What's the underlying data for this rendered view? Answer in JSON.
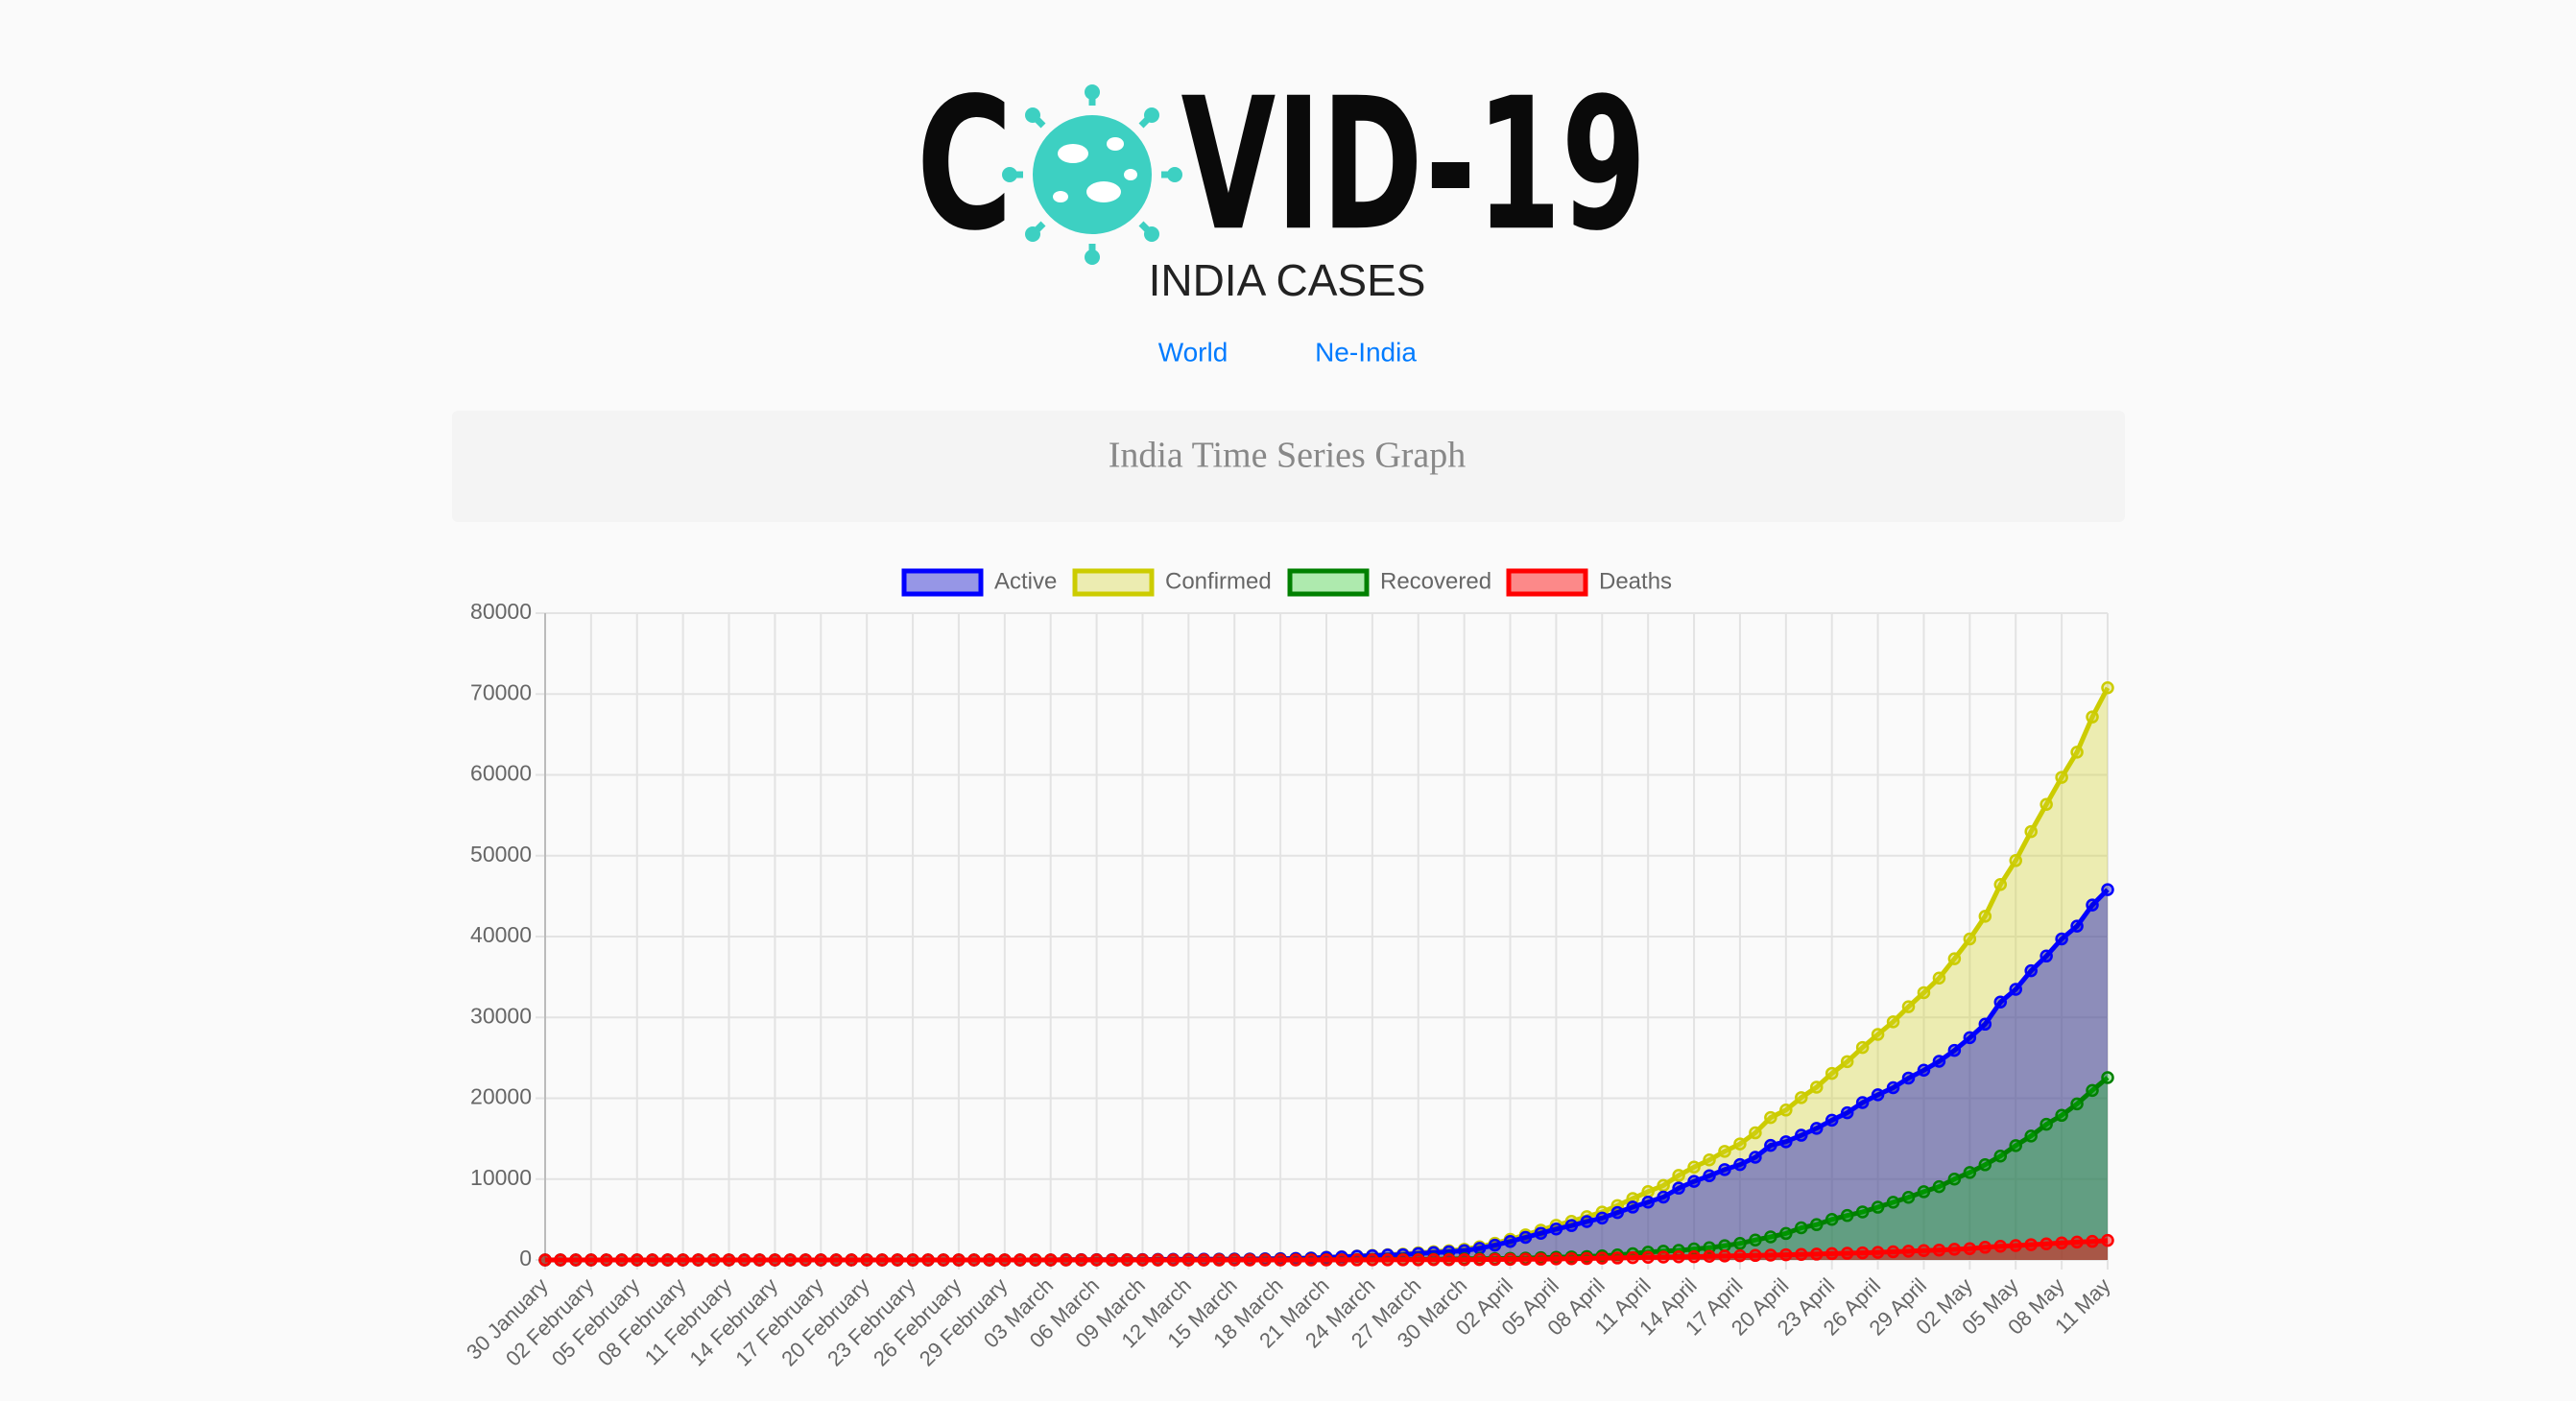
{
  "header": {
    "logo_start": "C",
    "logo_end": "VID-19",
    "subtitle": "INDIA CASES",
    "links": [
      "World",
      "Ne-India"
    ]
  },
  "card": {
    "title": "India Time Series Graph"
  },
  "chart_data": {
    "type": "line",
    "categories": [
      "30 January",
      null,
      null,
      "02 February",
      null,
      null,
      "05 February",
      null,
      null,
      "08 February",
      null,
      null,
      "11 February",
      null,
      null,
      "14 February",
      null,
      null,
      "17 February",
      null,
      null,
      "20 February",
      null,
      null,
      "23 February",
      null,
      null,
      "26 February",
      null,
      null,
      "29 February",
      null,
      null,
      "03 March",
      null,
      null,
      "06 March",
      null,
      null,
      "09 March",
      null,
      null,
      "12 March",
      null,
      null,
      "15 March",
      null,
      null,
      "18 March",
      null,
      null,
      "21 March",
      null,
      null,
      "24 March",
      null,
      null,
      "27 March",
      null,
      null,
      "30 March",
      null,
      null,
      "02 April",
      null,
      null,
      "05 April",
      null,
      null,
      "08 April",
      null,
      null,
      "11 April",
      null,
      null,
      "14 April",
      null,
      null,
      "17 April",
      null,
      null,
      "20 April",
      null,
      null,
      "23 April",
      null,
      null,
      "26 April",
      null,
      null,
      "29 April",
      null,
      null,
      "02 May",
      null,
      null,
      "05 May",
      null,
      null,
      "08 May",
      null,
      null,
      "11 May"
    ],
    "series": [
      {
        "name": "Active",
        "color": "#0000ff",
        "fill": "rgba(0,0,200,0.4)",
        "values": [
          1,
          1,
          1,
          2,
          3,
          3,
          3,
          3,
          3,
          3,
          3,
          3,
          3,
          3,
          3,
          3,
          3,
          3,
          3,
          3,
          3,
          0,
          0,
          0,
          0,
          0,
          0,
          0,
          0,
          0,
          0,
          0,
          2,
          3,
          25,
          27,
          28,
          31,
          36,
          45,
          60,
          68,
          77,
          86,
          90,
          97,
          110,
          129,
          153,
          174,
          228,
          305,
          372,
          453,
          520,
          602,
          643,
          787,
          907,
          1005,
          1154,
          1440,
          1832,
          2282,
          2790,
          3299,
          3826,
          4251,
          4750,
          5183,
          5862,
          6537,
          7153,
          7773,
          8880,
          9721,
          10412,
          11179,
          11792,
          12700,
          14169,
          14621,
          15424,
          16279,
          17285,
          18207,
          19463,
          20428,
          21306,
          22498,
          23471,
          24572,
          25927,
          27489,
          29164,
          31897,
          33473,
          35767,
          37590,
          39707,
          41295,
          43898,
          45804
        ]
      },
      {
        "name": "Confirmed",
        "color": "#cccc00",
        "fill": "rgba(210,210,40,0.35)",
        "values": [
          1,
          1,
          1,
          2,
          3,
          3,
          3,
          3,
          3,
          3,
          3,
          3,
          3,
          3,
          3,
          3,
          3,
          3,
          3,
          3,
          3,
          3,
          3,
          3,
          3,
          3,
          3,
          3,
          3,
          3,
          3,
          3,
          5,
          6,
          28,
          30,
          31,
          34,
          39,
          48,
          63,
          71,
          81,
          91,
          102,
          112,
          126,
          146,
          171,
          198,
          256,
          334,
          403,
          497,
          571,
          657,
          730,
          883,
          1019,
          1139,
          1326,
          1635,
          2059,
          2545,
          3105,
          3684,
          4293,
          4777,
          5350,
          5915,
          6728,
          7599,
          8453,
          9211,
          10454,
          11485,
          12371,
          13432,
          14354,
          15722,
          17615,
          18539,
          20080,
          21370,
          23077,
          24530,
          26283,
          27890,
          29451,
          31324,
          33062,
          34863,
          37257,
          39699,
          42505,
          46437,
          49400,
          52987,
          56351,
          59695,
          62808,
          67161,
          70768
        ]
      },
      {
        "name": "Recovered",
        "color": "#008000",
        "fill": "rgba(0,200,0,0.3)",
        "values": [
          0,
          0,
          0,
          0,
          0,
          0,
          0,
          0,
          0,
          0,
          0,
          0,
          0,
          0,
          0,
          0,
          0,
          0,
          0,
          0,
          0,
          3,
          3,
          3,
          3,
          3,
          3,
          3,
          3,
          3,
          3,
          3,
          3,
          3,
          3,
          3,
          3,
          3,
          3,
          3,
          3,
          3,
          3,
          3,
          10,
          13,
          14,
          14,
          15,
          20,
          23,
          23,
          24,
          34,
          40,
          43,
          67,
          75,
          85,
          102,
          137,
          150,
          169,
          191,
          229,
          286,
          331,
          376,
          422,
          506,
          620,
          774,
          969,
          1080,
          1181,
          1359,
          1511,
          1767,
          2041,
          2463,
          2854,
          3273,
          3975,
          4370,
          5012,
          5498,
          5939,
          6523,
          7137,
          7747,
          8437,
          9068,
          10007,
          10819,
          11775,
          12847,
          14142,
          15331,
          16776,
          17887,
          19301,
          20969,
          22549
        ]
      },
      {
        "name": "Deaths",
        "color": "#ff0000",
        "fill": "rgba(255,0,0,0.45)",
        "values": [
          0,
          0,
          0,
          0,
          0,
          0,
          0,
          0,
          0,
          0,
          0,
          0,
          0,
          0,
          0,
          0,
          0,
          0,
          0,
          0,
          0,
          0,
          0,
          0,
          0,
          0,
          0,
          0,
          0,
          0,
          0,
          0,
          0,
          0,
          0,
          0,
          0,
          0,
          0,
          0,
          0,
          0,
          1,
          2,
          2,
          2,
          2,
          3,
          3,
          4,
          5,
          6,
          7,
          10,
          11,
          12,
          20,
          21,
          27,
          32,
          35,
          45,
          58,
          72,
          86,
          99,
          136,
          150,
          178,
          226,
          246,
          288,
          331,
          358,
          393,
          405,
          448,
          486,
          521,
          559,
          592,
          645,
          681,
          721,
          780,
          825,
          881,
          939,
          1008,
          1079,
          1154,
          1223,
          1323,
          1391,
          1566,
          1693,
          1785,
          1889,
          1985,
          2101,
          2212,
          2294,
          2415
        ]
      }
    ],
    "ylim": [
      0,
      80000
    ],
    "yticks": [
      0,
      10000,
      20000,
      30000,
      40000,
      50000,
      60000,
      70000,
      80000
    ],
    "grid": true,
    "legend": "top"
  }
}
